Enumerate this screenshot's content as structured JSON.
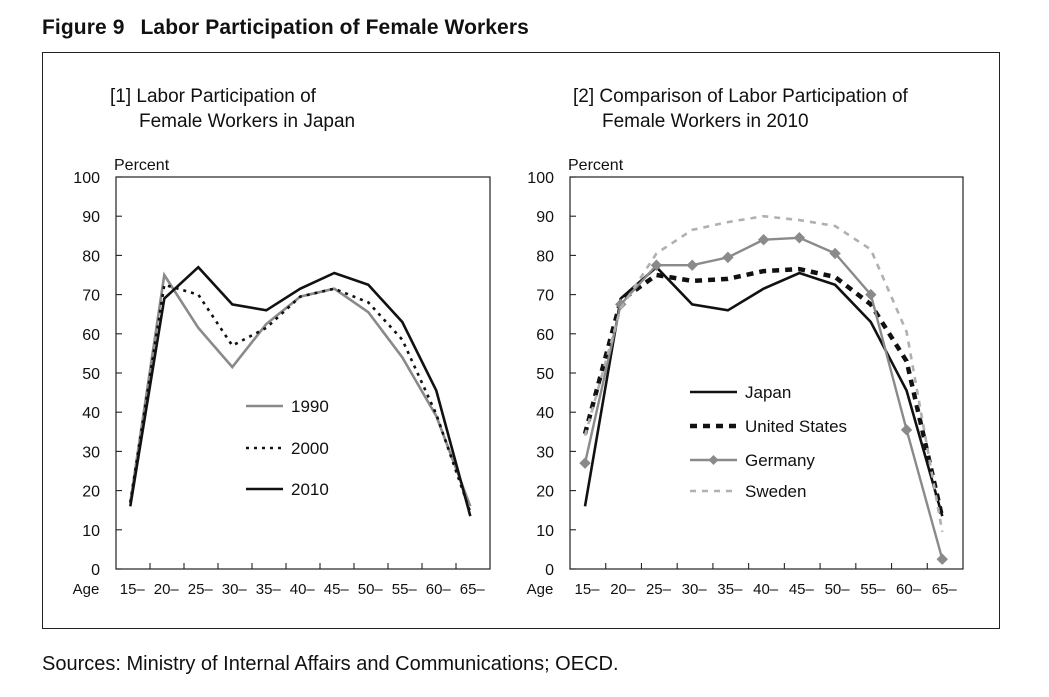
{
  "figure": {
    "number": "Figure 9",
    "title": "Labor Participation of Female Workers"
  },
  "sources": "Sources: Ministry of Internal Affairs and Communications; OECD.",
  "colors": {
    "black": "#111111",
    "gray": "#8a8a8a",
    "light_gray": "#b0b0b0"
  },
  "chart_data": [
    {
      "type": "line",
      "title_line1": "[1] Labor Participation of",
      "title_line2": "Female Workers in Japan",
      "ylabel": "Percent",
      "xlabel": "Age",
      "ylim": [
        0,
        100
      ],
      "yticks": [
        0,
        10,
        20,
        30,
        40,
        50,
        60,
        70,
        80,
        90,
        100
      ],
      "categories": [
        "15–",
        "20–",
        "25–",
        "30–",
        "35–",
        "40–",
        "45–",
        "50–",
        "55–",
        "60–",
        "65–"
      ],
      "legend_position": "center",
      "series": [
        {
          "name": "1990",
          "style": "gray-solid",
          "values": [
            17,
            75,
            61.5,
            51.5,
            62.5,
            69.5,
            71.5,
            65.5,
            54,
            39,
            16
          ]
        },
        {
          "name": "2000",
          "style": "black-dotted",
          "values": [
            17,
            72.5,
            70,
            57,
            61.5,
            69.5,
            71.5,
            68,
            58.5,
            39.5,
            14.5
          ]
        },
        {
          "name": "2010",
          "style": "black-solid",
          "values": [
            16,
            69,
            77,
            67.5,
            66,
            71.5,
            75.5,
            72.5,
            63,
            45.5,
            13.5
          ]
        }
      ]
    },
    {
      "type": "line",
      "title_line1": "[2] Comparison of Labor Participation of",
      "title_line2": "Female Workers in 2010",
      "ylabel": "Percent",
      "xlabel": "Age",
      "ylim": [
        0,
        100
      ],
      "yticks": [
        0,
        10,
        20,
        30,
        40,
        50,
        60,
        70,
        80,
        90,
        100
      ],
      "categories": [
        "15–",
        "20–",
        "25–",
        "30–",
        "35–",
        "40–",
        "45–",
        "50–",
        "55–",
        "60–",
        "65–"
      ],
      "legend_position": "lower-center",
      "series": [
        {
          "name": "Japan",
          "style": "black-solid",
          "values": [
            16,
            69,
            77,
            67.5,
            66,
            71.5,
            75.5,
            72.5,
            63,
            45.5,
            13.5
          ]
        },
        {
          "name": "United States",
          "style": "black-dashed",
          "values": [
            34.5,
            68.5,
            75,
            73.5,
            74,
            76,
            76.5,
            74.5,
            67.5,
            53,
            13
          ]
        },
        {
          "name": "Germany",
          "style": "gray-diamond",
          "values": [
            27,
            67.5,
            77.5,
            77.5,
            79.5,
            84,
            84.5,
            80.5,
            70,
            35.5,
            2.5
          ]
        },
        {
          "name": "Sweden",
          "style": "lightgray-dashed",
          "values": [
            34,
            66.5,
            80.5,
            86.5,
            88.5,
            90,
            89,
            87.5,
            81.5,
            60.5,
            9.5
          ]
        }
      ]
    }
  ]
}
